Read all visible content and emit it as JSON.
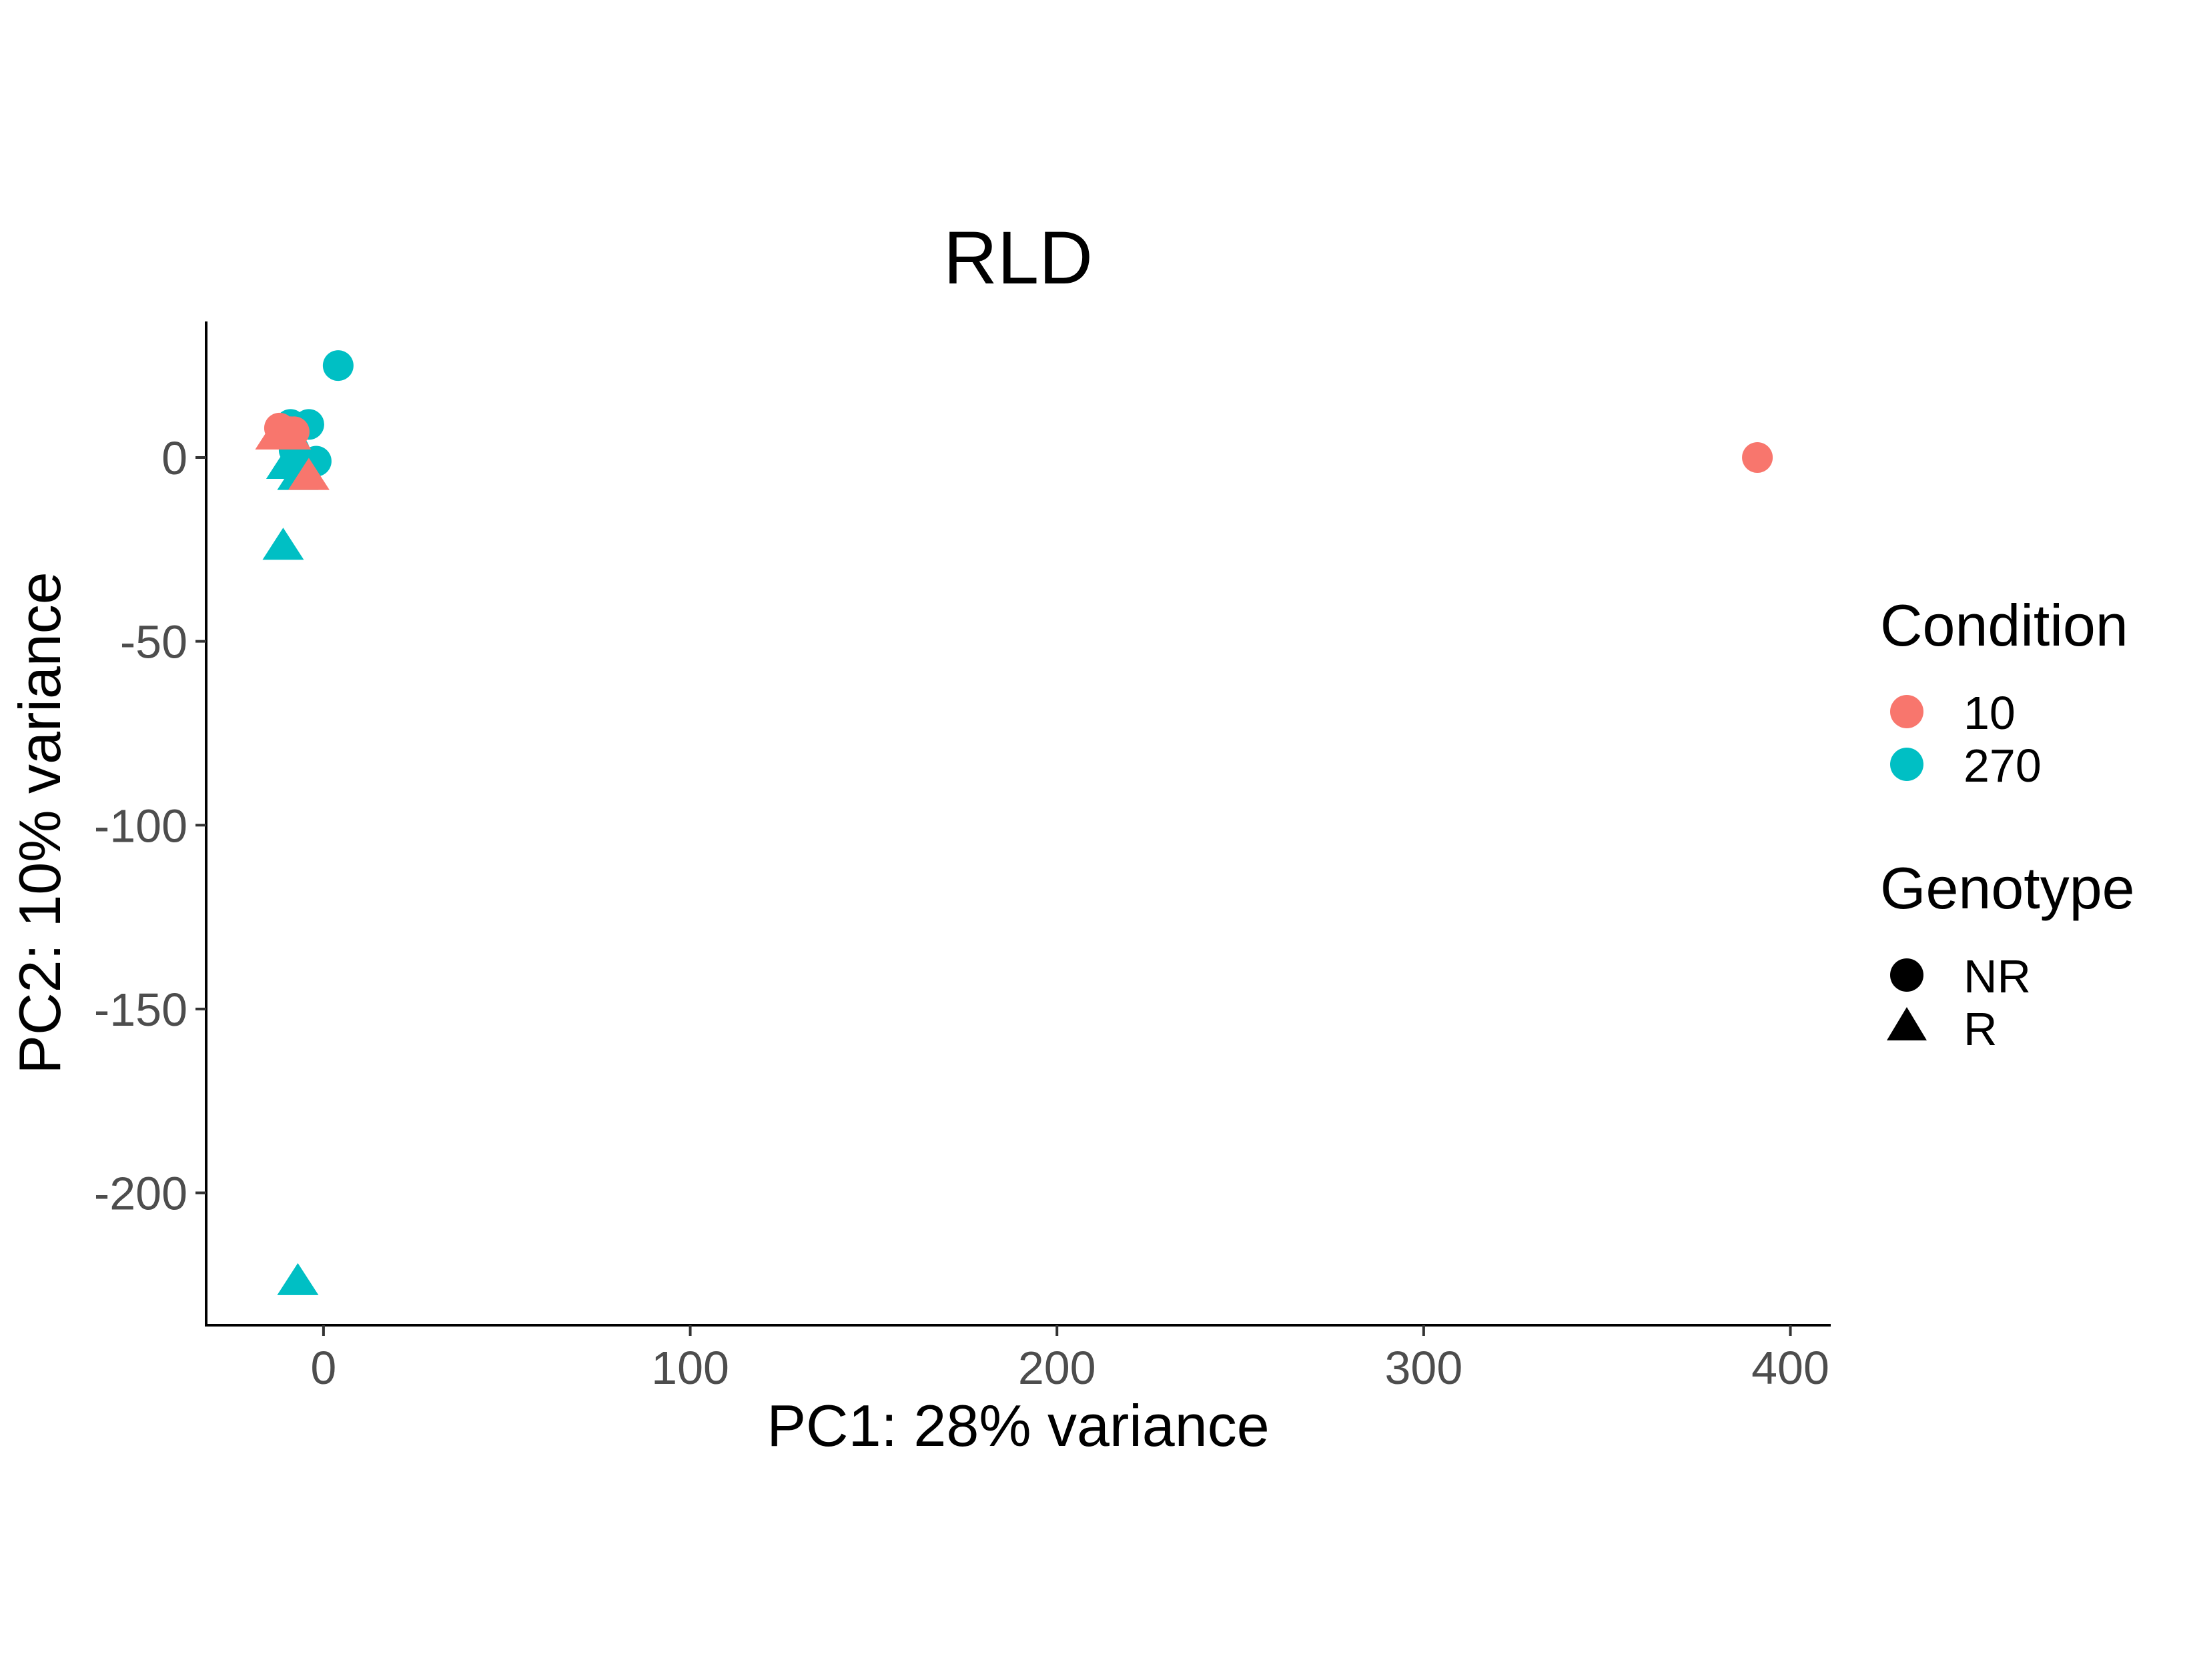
{
  "chart_data": {
    "type": "scatter",
    "title": "RLD",
    "xlabel": "PC1: 28% variance",
    "ylabel": "PC2: 10% variance",
    "xlim": [
      -32,
      411
    ],
    "ylim": [
      -236,
      37
    ],
    "xticks": [
      0,
      100,
      200,
      300,
      400
    ],
    "yticks": [
      0,
      -50,
      -100,
      -150,
      -200
    ],
    "xtick_labels": [
      "0",
      "100",
      "200",
      "300",
      "400"
    ],
    "ytick_labels": [
      "0",
      "-50",
      "-100",
      "-150",
      "-200"
    ],
    "grid": false,
    "legend_position": "right",
    "colors": {
      "10": "#F8766D",
      "270": "#00BFC4"
    },
    "legends": [
      {
        "title": "Condition",
        "entries": [
          {
            "label": "10",
            "shape": "circle",
            "color": "#F8766D"
          },
          {
            "label": "270",
            "shape": "circle",
            "color": "#00BFC4"
          }
        ]
      },
      {
        "title": "Genotype",
        "entries": [
          {
            "label": "NR",
            "shape": "circle",
            "color": "#000000"
          },
          {
            "label": "R",
            "shape": "triangle",
            "color": "#000000"
          }
        ]
      }
    ],
    "points": [
      {
        "x": 4,
        "y": 25,
        "condition": "270",
        "genotype": "NR"
      },
      {
        "x": -4,
        "y": 9,
        "condition": "270",
        "genotype": "NR"
      },
      {
        "x": -9,
        "y": 9,
        "condition": "270",
        "genotype": "NR"
      },
      {
        "x": -2,
        "y": -1,
        "condition": "270",
        "genotype": "NR"
      },
      {
        "x": -8,
        "y": 2,
        "condition": "270",
        "genotype": "NR"
      },
      {
        "x": -10,
        "y": -2,
        "condition": "270",
        "genotype": "R"
      },
      {
        "x": -7,
        "y": -5,
        "condition": "270",
        "genotype": "R"
      },
      {
        "x": -5,
        "y": -4,
        "condition": "270",
        "genotype": "R"
      },
      {
        "x": -11,
        "y": -24,
        "condition": "270",
        "genotype": "R"
      },
      {
        "x": -7,
        "y": -224,
        "condition": "270",
        "genotype": "R"
      },
      {
        "x": -4,
        "y": -5,
        "condition": "10",
        "genotype": "R"
      },
      {
        "x": -13,
        "y": 6,
        "condition": "10",
        "genotype": "R"
      },
      {
        "x": -9,
        "y": 6,
        "condition": "10",
        "genotype": "R"
      },
      {
        "x": -12,
        "y": 8,
        "condition": "10",
        "genotype": "NR"
      },
      {
        "x": -9,
        "y": 7,
        "condition": "10",
        "genotype": "NR"
      },
      {
        "x": -8,
        "y": 7,
        "condition": "10",
        "genotype": "NR"
      },
      {
        "x": 391,
        "y": 0,
        "condition": "10",
        "genotype": "NR"
      }
    ]
  }
}
